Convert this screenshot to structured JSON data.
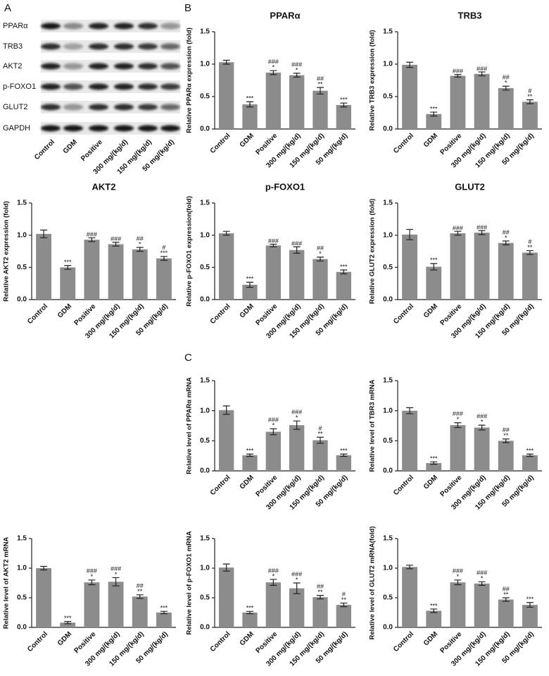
{
  "panel_labels": [
    "A",
    "B",
    "C"
  ],
  "blot": {
    "rows": [
      "PPARα",
      "TRB3",
      "AKT2",
      "p-FOXO1",
      "GLUT2",
      "GAPDH"
    ],
    "columns": [
      "Control",
      "GDM",
      "Positive",
      "300 mg/(kg/d)",
      "150 mg/(kg/d)",
      "50 mg/(kg/d)"
    ]
  },
  "chart_data": [
    {
      "type": "bar",
      "title": "PPARα",
      "ylabel": "Relative PPARα expression (fold)",
      "color": "#8c8c8c",
      "categories": [
        "Control",
        "GDM",
        "Positive",
        "300 mg/(kg/d)",
        "150 mg/(kg/d)",
        "50 mg/(kg/d)"
      ],
      "values": [
        1.03,
        0.38,
        0.87,
        0.83,
        0.59,
        0.37
      ],
      "errors": [
        0.03,
        0.04,
        0.03,
        0.03,
        0.05,
        0.03
      ],
      "significance": [
        null,
        [
          "***"
        ],
        [
          "###",
          "*"
        ],
        [
          "###",
          "*"
        ],
        [
          "##",
          "**"
        ],
        [
          "***"
        ]
      ],
      "ylim": [
        0,
        1.5
      ],
      "yticks": [
        {
          "value": 0,
          "label": "0.0"
        },
        0.5,
        {
          "value": 1,
          "label": "1.0"
        },
        1.5
      ]
    },
    {
      "type": "bar",
      "title": "TRB3",
      "ylabel": "Relative TRB3 expression (fold)",
      "color": "#8c8c8c",
      "categories": [
        "Control",
        "GDM",
        "Positive",
        "300 mg/(kg/d)",
        "150 mg/(kg/d)",
        "50 mg/(kg/d)"
      ],
      "values": [
        0.99,
        0.23,
        0.82,
        0.85,
        0.63,
        0.42
      ],
      "errors": [
        0.04,
        0.03,
        0.02,
        0.03,
        0.03,
        0.03
      ],
      "significance": [
        null,
        [
          "***"
        ],
        [
          "###"
        ],
        [
          "###"
        ],
        [
          "##",
          "*"
        ],
        [
          "#",
          "**"
        ]
      ],
      "ylim": [
        0,
        1.5
      ],
      "yticks": [
        {
          "value": 0,
          "label": "0.0"
        },
        0.5,
        {
          "value": 1,
          "label": "1.0"
        },
        1.5
      ]
    },
    {
      "type": "bar",
      "title": "AKT2",
      "ylabel": "Relative AKT2 expression (fold)",
      "color": "#8c8c8c",
      "categories": [
        "Control",
        "GDM",
        "Positive",
        "300 mg/(kg/d)",
        "150 mg/(kg/d)",
        "50 mg/(kg/d)"
      ],
      "values": [
        1.02,
        0.5,
        0.93,
        0.86,
        0.78,
        0.64
      ],
      "errors": [
        0.06,
        0.03,
        0.03,
        0.03,
        0.03,
        0.03
      ],
      "significance": [
        null,
        [
          "***"
        ],
        [
          "###"
        ],
        [
          "###"
        ],
        [
          "##",
          "*"
        ],
        [
          "#",
          "***"
        ]
      ],
      "ylim": [
        0,
        1.5
      ],
      "yticks": [
        {
          "value": 0,
          "label": "0.0"
        },
        0.5,
        {
          "value": 1,
          "label": "1.0"
        },
        1.5
      ]
    },
    {
      "type": "bar",
      "title": "p-FOXO1",
      "ylabel": "Relative p-FOXO1 expression(fold)",
      "color": "#8c8c8c",
      "categories": [
        "Control",
        "GDM",
        "Positive",
        "300 mg/(kg/d)",
        "150 mg/(kg/d)",
        "50 mg/(kg/d)"
      ],
      "values": [
        1.03,
        0.23,
        0.84,
        0.77,
        0.63,
        0.43
      ],
      "errors": [
        0.03,
        0.04,
        0.02,
        0.05,
        0.03,
        0.03
      ],
      "significance": [
        null,
        [
          "***"
        ],
        [
          "###"
        ],
        [
          "###"
        ],
        [
          "##",
          "*"
        ],
        [
          "***"
        ]
      ],
      "ylim": [
        0,
        1.5
      ],
      "yticks": [
        {
          "value": 0,
          "label": "0.0"
        },
        0.5,
        {
          "value": 1,
          "label": "1.0"
        },
        1.5
      ]
    },
    {
      "type": "bar",
      "title": "GLUT2",
      "ylabel": "Relative GLUT2 expression (fold)",
      "color": "#8c8c8c",
      "categories": [
        "Control",
        "GDM",
        "Positive",
        "300 mg/(kg/d)",
        "150 mg/(kg/d)",
        "50 mg/(kg/d)"
      ],
      "values": [
        1.01,
        0.51,
        1.03,
        1.04,
        0.88,
        0.73
      ],
      "errors": [
        0.08,
        0.05,
        0.03,
        0.03,
        0.03,
        0.03
      ],
      "significance": [
        null,
        [
          "***"
        ],
        [
          "###"
        ],
        [
          "###"
        ],
        [
          "##",
          "*"
        ],
        [
          "#",
          "**"
        ]
      ],
      "ylim": [
        0,
        1.5
      ],
      "yticks": [
        {
          "value": 0,
          "label": "0.0"
        },
        0.5,
        {
          "value": 1,
          "label": "1.0"
        },
        1.5
      ]
    },
    {
      "type": "bar",
      "ylabel": "Relative level of PPARα mRNA",
      "color": "#8c8c8c",
      "categories": [
        "Control",
        "GDM",
        "Positive",
        "300 mg/(kg/d)",
        "150 mg/(kg/d)",
        "50 mg/(kg/d)"
      ],
      "values": [
        1.01,
        0.26,
        0.65,
        0.76,
        0.51,
        0.26
      ],
      "errors": [
        0.07,
        0.02,
        0.05,
        0.07,
        0.05,
        0.02
      ],
      "significance": [
        null,
        [
          "***"
        ],
        [
          "###",
          "*"
        ],
        [
          "###",
          "*"
        ],
        [
          "#",
          "**"
        ],
        [
          "***"
        ]
      ],
      "ylim": [
        0,
        1.5
      ],
      "yticks": [
        {
          "value": 0,
          "label": "0.0"
        },
        0.5,
        {
          "value": 1,
          "label": "1.0"
        },
        1.5
      ]
    },
    {
      "type": "bar",
      "ylabel": "Relative level of TBR3 mRNA",
      "color": "#8c8c8c",
      "categories": [
        "Control",
        "GDM",
        "Positive",
        "300 mg/(kg/d)",
        "150 mg/(kg/d)",
        "50 mg/(kg/d)"
      ],
      "values": [
        1.0,
        0.13,
        0.76,
        0.72,
        0.5,
        0.26
      ],
      "errors": [
        0.05,
        0.02,
        0.04,
        0.04,
        0.03,
        0.02
      ],
      "significance": [
        null,
        [
          "***"
        ],
        [
          "###",
          "*"
        ],
        [
          "###",
          "*"
        ],
        [
          "##",
          "**"
        ],
        [
          "***"
        ]
      ],
      "ylim": [
        0,
        1.5
      ],
      "yticks": [
        {
          "value": 0,
          "label": "0.0"
        },
        0.5,
        {
          "value": 1,
          "label": "1.0"
        },
        1.5
      ]
    },
    {
      "type": "bar",
      "ylabel": "Relative level of AKT2 mRNA",
      "color": "#8c8c8c",
      "categories": [
        "Control",
        "GDM",
        "Positive",
        "300 mg/(kg/d)",
        "150 mg/(kg/d)",
        "50 mg/(kg/d)"
      ],
      "values": [
        1.0,
        0.08,
        0.76,
        0.77,
        0.52,
        0.25
      ],
      "errors": [
        0.03,
        0.02,
        0.04,
        0.07,
        0.03,
        0.02
      ],
      "significance": [
        null,
        [
          "***"
        ],
        [
          "###",
          "*"
        ],
        [
          "###",
          "*"
        ],
        [
          "##",
          "**"
        ],
        [
          "***"
        ]
      ],
      "ylim": [
        0,
        1.5
      ],
      "yticks": [
        {
          "value": 0,
          "label": "0.0"
        },
        0.5,
        {
          "value": 1,
          "label": "1.0"
        },
        1.5
      ]
    },
    {
      "type": "bar",
      "ylabel": "Relative level of p-FOXO1 mRNA",
      "color": "#8c8c8c",
      "categories": [
        "Control",
        "GDM",
        "Positive",
        "300 mg/(kg/d)",
        "150 mg/(kg/d)",
        "50 mg/(kg/d)"
      ],
      "values": [
        1.01,
        0.25,
        0.76,
        0.66,
        0.51,
        0.38
      ],
      "errors": [
        0.06,
        0.02,
        0.05,
        0.09,
        0.03,
        0.03
      ],
      "significance": [
        null,
        [
          "***"
        ],
        [
          "###",
          "*"
        ],
        [
          "###",
          "*"
        ],
        [
          "##",
          "**"
        ],
        [
          "#",
          "**"
        ]
      ],
      "ylim": [
        0,
        1.5
      ],
      "yticks": [
        {
          "value": 0,
          "label": "0.0"
        },
        0.5,
        {
          "value": 1,
          "label": "1.0"
        },
        1.5
      ]
    },
    {
      "type": "bar",
      "ylabel": "Relative level of GLUT2 mRNA(fold)",
      "color": "#8c8c8c",
      "categories": [
        "Control",
        "GDM",
        "Positive",
        "300 mg/(kg/d)",
        "150 mg/(kg/d)",
        "50 mg/(kg/d)"
      ],
      "values": [
        1.02,
        0.28,
        0.76,
        0.74,
        0.47,
        0.38
      ],
      "errors": [
        0.03,
        0.03,
        0.04,
        0.03,
        0.03,
        0.04
      ],
      "significance": [
        null,
        [
          "***"
        ],
        [
          "###",
          "*"
        ],
        [
          "###",
          "*"
        ],
        [
          "##",
          "**"
        ],
        [
          "***"
        ]
      ],
      "ylim": [
        0,
        1.5
      ],
      "yticks": [
        {
          "value": 0,
          "label": "0.0"
        },
        0.5,
        {
          "value": 1,
          "label": "1.0"
        },
        1.5
      ]
    }
  ]
}
